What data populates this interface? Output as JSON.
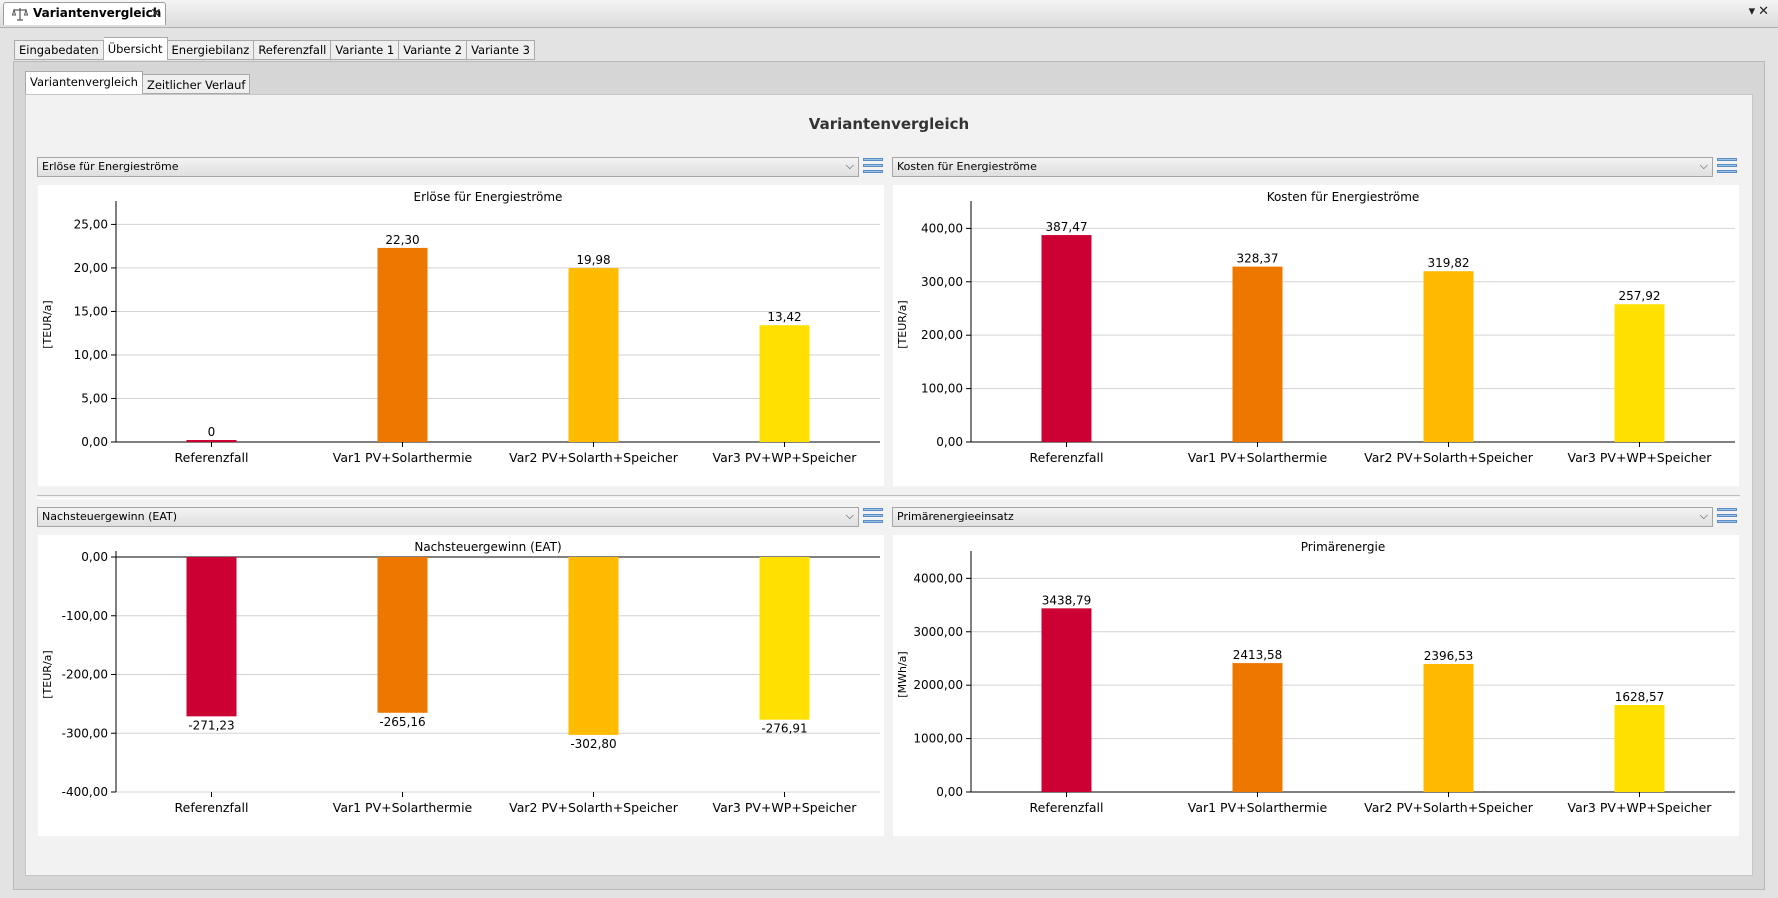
{
  "window": {
    "view_tab_title": "Variantenvergleich",
    "view_icon": "scale-icon",
    "close_icon": "close-icon",
    "window_controls": [
      "chevron-down-icon",
      "close-icon"
    ]
  },
  "main_tabs": [
    {
      "label": "Eingabedaten",
      "active": false
    },
    {
      "label": "Übersicht",
      "active": true
    },
    {
      "label": "Energiebilanz",
      "active": false
    },
    {
      "label": "Referenzfall",
      "active": false
    },
    {
      "label": "Variante 1",
      "active": false
    },
    {
      "label": "Variante 2",
      "active": false
    },
    {
      "label": "Variante 3",
      "active": false
    }
  ],
  "sub_tabs": [
    {
      "label": "Variantenvergleich",
      "active": true
    },
    {
      "label": "Zeitlicher Verlauf",
      "active": false
    }
  ],
  "page": {
    "title": "Variantenvergleich"
  },
  "colors": {
    "referenzfall": "#cc0033",
    "var1": "#ee7700",
    "var2": "#ffbb00",
    "var3": "#ffe000",
    "grid": "#d3d3d3",
    "menu_icon": "#9ac3e8"
  },
  "dropdowns": [
    {
      "selected": "Erlöse für Energieströme"
    },
    {
      "selected": "Kosten für Energieströme"
    },
    {
      "selected": "Nachsteuergewinn (EAT)"
    },
    {
      "selected": "Primärenergieeinsatz"
    }
  ],
  "chart_data": [
    {
      "type": "bar",
      "title": "Erlöse für Energieströme",
      "ylabel": "[TEUR/a]",
      "categories": [
        "Referenzfall",
        "Var1 PV+Solarthermie",
        "Var2 PV+Solarth+Speicher",
        "Var3 PV+WP+Speicher"
      ],
      "values": [
        0,
        22.3,
        19.98,
        13.42
      ],
      "value_labels": [
        "0",
        "22,30",
        "19,98",
        "13,42"
      ],
      "yticks": [
        0,
        5,
        10,
        15,
        20,
        25
      ],
      "ytick_labels": [
        "0,00",
        "5,00",
        "10,00",
        "15,00",
        "20,00",
        "25,00"
      ],
      "ylim": [
        0,
        27
      ],
      "grid": true
    },
    {
      "type": "bar",
      "title": "Kosten für Energieströme",
      "ylabel": "[TEUR/a]",
      "categories": [
        "Referenzfall",
        "Var1 PV+Solarthermie",
        "Var2 PV+Solarth+Speicher",
        "Var3 PV+WP+Speicher"
      ],
      "values": [
        387.47,
        328.37,
        319.82,
        257.92
      ],
      "value_labels": [
        "387,47",
        "328,37",
        "319,82",
        "257,92"
      ],
      "yticks": [
        0,
        100,
        200,
        300,
        400
      ],
      "ytick_labels": [
        "0,00",
        "100,00",
        "200,00",
        "300,00",
        "400,00"
      ],
      "ylim": [
        0,
        440
      ],
      "grid": true
    },
    {
      "type": "bar",
      "title": "Nachsteuergewinn (EAT)",
      "ylabel": "[TEUR/a]",
      "categories": [
        "Referenzfall",
        "Var1 PV+Solarthermie",
        "Var2 PV+Solarth+Speicher",
        "Var3 PV+WP+Speicher"
      ],
      "values": [
        -271.23,
        -265.16,
        -302.8,
        -276.91
      ],
      "value_labels": [
        "-271,23",
        "-265,16",
        "-302,80",
        "-276,91"
      ],
      "yticks": [
        -400,
        -300,
        -200,
        -100,
        0
      ],
      "ytick_labels": [
        "-400,00",
        "-300,00",
        "-200,00",
        "-100,00",
        "0,00"
      ],
      "ylim": [
        -400,
        0
      ],
      "grid": true
    },
    {
      "type": "bar",
      "title": "Primärenergie",
      "ylabel": "[MWh/a]",
      "categories": [
        "Referenzfall",
        "Var1 PV+Solarthermie",
        "Var2 PV+Solarth+Speicher",
        "Var3 PV+WP+Speicher"
      ],
      "values": [
        3438.79,
        2413.58,
        2396.53,
        1628.57
      ],
      "value_labels": [
        "3438,79",
        "2413,58",
        "2396,53",
        "1628,57"
      ],
      "yticks": [
        0,
        1000,
        2000,
        3000,
        4000
      ],
      "ytick_labels": [
        "0,00",
        "1000,00",
        "2000,00",
        "3000,00",
        "4000,00"
      ],
      "ylim": [
        0,
        4400
      ],
      "grid": true
    }
  ]
}
